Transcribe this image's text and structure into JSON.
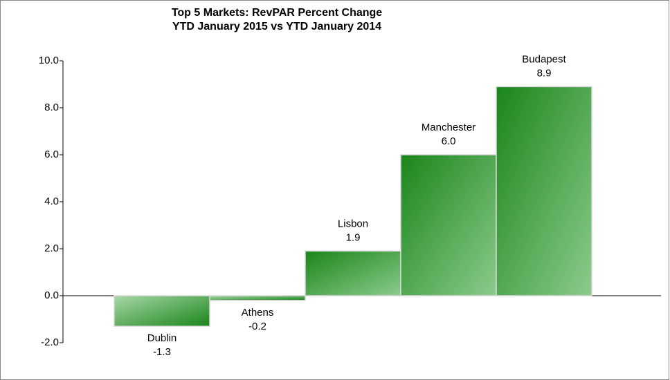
{
  "chart_data": {
    "type": "bar",
    "title": "Top 5 Markets: RevPAR Percent Change",
    "subtitle": "YTD January 2015 vs YTD January 2014",
    "categories": [
      "Dublin",
      "Athens",
      "Lisbon",
      "Manchester",
      "Budapest"
    ],
    "values": [
      -1.3,
      -0.2,
      1.9,
      6.0,
      8.9
    ],
    "value_labels": [
      "-1.3",
      "-0.2",
      "1.9",
      "6.0",
      "8.9"
    ],
    "color": "#1a851a",
    "ylim": [
      -2,
      10
    ],
    "yticks": [
      {
        "value": -2,
        "label": "-2.0"
      },
      {
        "value": 0,
        "label": "0.0"
      },
      {
        "value": 2,
        "label": "2.0"
      },
      {
        "value": 4,
        "label": "4.0"
      },
      {
        "value": 6,
        "label": "6.0"
      },
      {
        "value": 8,
        "label": "8.0"
      },
      {
        "value": 10,
        "label": "10.0"
      }
    ]
  }
}
